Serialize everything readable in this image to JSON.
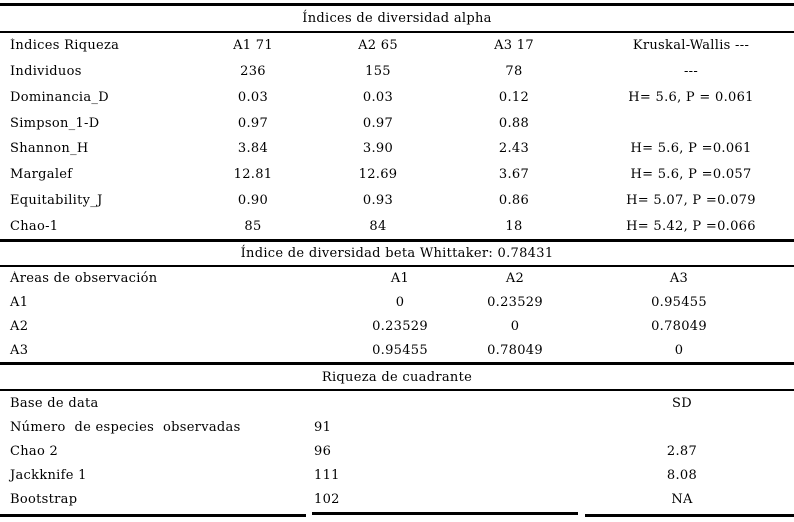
{
  "colors": {
    "background": "#ffffff",
    "text": "#000000",
    "rule": "#000000"
  },
  "sections": [
    {
      "title": "Índices de diversidad alpha",
      "rows": [
        [
          "Índices Riqueza",
          "A1 71",
          "A2 65",
          "A3 17",
          "Kruskal-Wallis ---"
        ],
        [
          "Individuos",
          "236",
          "155",
          "78",
          "---"
        ],
        [
          "Dominancia_D",
          "0.03",
          "0.03",
          "0.12",
          "H= 5.6, P = 0.061"
        ],
        [
          "Simpson_1-D",
          "0.97",
          "0.97",
          "0.88",
          ""
        ],
        [
          "Shannon_H",
          "3.84",
          "3.90",
          "2.43",
          "H= 5.6, P =0.061"
        ],
        [
          "Margalef",
          "12.81",
          "12.69",
          "3.67",
          "H= 5.6, P =0.057"
        ],
        [
          "Equitability_J",
          "0.90",
          "0.93",
          "0.86",
          "H= 5.07, P =0.079"
        ],
        [
          "Chao-1",
          "85",
          "84",
          "18",
          "H= 5.42, P =0.066"
        ]
      ]
    },
    {
      "title": "Índice de diversidad beta Whittaker: 0.78431",
      "rows": [
        [
          "Áreas de observación",
          "A1",
          "A2",
          "A3"
        ],
        [
          "A1",
          "0",
          "0.23529",
          "0.95455"
        ],
        [
          "A2",
          "0.23529",
          "0",
          "0.78049"
        ],
        [
          "A3",
          "0.95455",
          "0.78049",
          "0"
        ]
      ]
    },
    {
      "title": "Riqueza de cuadrante",
      "rows": [
        [
          "Base de data",
          "",
          "SD"
        ],
        [
          "Número  de especies  observadas",
          "91",
          ""
        ],
        [
          "Chao 2",
          "96",
          "2.87"
        ],
        [
          "Jackknife 1",
          "111",
          "8.08"
        ],
        [
          "Bootstrap",
          "102",
          "NA"
        ]
      ]
    }
  ],
  "chart_data": {
    "type": "table",
    "tables": [
      {
        "title": "Índices de diversidad alpha",
        "columns": [
          "Índices Riqueza",
          "A1 71",
          "A2 65",
          "A3 17",
          "Kruskal-Wallis ---"
        ],
        "rows": [
          {
            "indice": "Individuos",
            "A1": 236,
            "A2": 155,
            "A3": 78,
            "kruskal_wallis": "---"
          },
          {
            "indice": "Dominancia_D",
            "A1": 0.03,
            "A2": 0.03,
            "A3": 0.12,
            "kruskal_wallis": "H= 5.6, P = 0.061"
          },
          {
            "indice": "Simpson_1-D",
            "A1": 0.97,
            "A2": 0.97,
            "A3": 0.88,
            "kruskal_wallis": ""
          },
          {
            "indice": "Shannon_H",
            "A1": 3.84,
            "A2": 3.9,
            "A3": 2.43,
            "kruskal_wallis": "H= 5.6, P =0.061"
          },
          {
            "indice": "Margalef",
            "A1": 12.81,
            "A2": 12.69,
            "A3": 3.67,
            "kruskal_wallis": "H= 5.6, P =0.057"
          },
          {
            "indice": "Equitability_J",
            "A1": 0.9,
            "A2": 0.93,
            "A3": 0.86,
            "kruskal_wallis": "H= 5.07, P =0.079"
          },
          {
            "indice": "Chao-1",
            "A1": 85,
            "A2": 84,
            "A3": 18,
            "kruskal_wallis": "H= 5.42, P =0.066"
          }
        ]
      },
      {
        "title": "Índice de diversidad beta Whittaker: 0.78431",
        "columns": [
          "Áreas de observación",
          "A1",
          "A2",
          "A3"
        ],
        "rows": [
          {
            "area": "A1",
            "A1": 0,
            "A2": 0.23529,
            "A3": 0.95455
          },
          {
            "area": "A2",
            "A1": 0.23529,
            "A2": 0,
            "A3": 0.78049
          },
          {
            "area": "A3",
            "A1": 0.95455,
            "A2": 0.78049,
            "A3": 0
          }
        ]
      },
      {
        "title": "Riqueza de cuadrante",
        "columns": [
          "Base de data",
          "",
          "SD"
        ],
        "rows": [
          {
            "base": "Número  de especies  observadas",
            "valor": 91,
            "SD": ""
          },
          {
            "base": "Chao 2",
            "valor": 96,
            "SD": 2.87
          },
          {
            "base": "Jackknife 1",
            "valor": 111,
            "SD": 8.08
          },
          {
            "base": "Bootstrap",
            "valor": 102,
            "SD": "NA"
          }
        ]
      }
    ]
  }
}
